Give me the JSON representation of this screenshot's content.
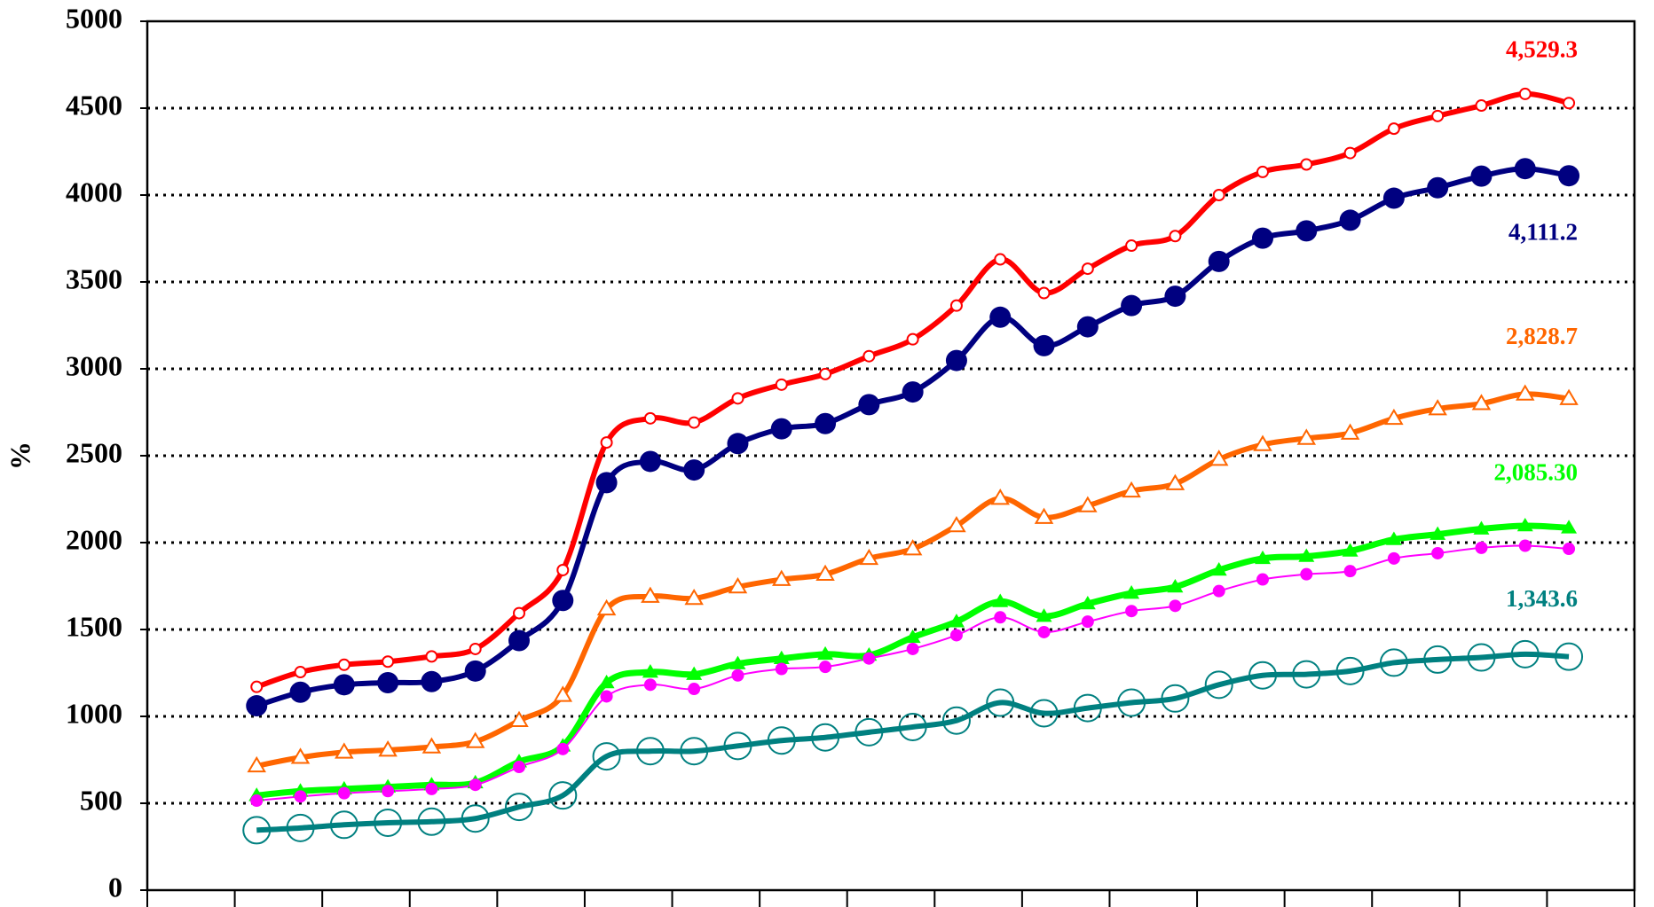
{
  "chart_data": {
    "type": "line",
    "y_label": "%",
    "categories": [
      null,
      null,
      null,
      null,
      null,
      null,
      null,
      null,
      null,
      null,
      null,
      null,
      null,
      null,
      null,
      null,
      null,
      null,
      null,
      null,
      null,
      null,
      null,
      null,
      null,
      null,
      null,
      null,
      null,
      null,
      null
    ],
    "ylim": [
      0,
      5000
    ],
    "yticks": [
      0,
      500,
      1000,
      1500,
      2000,
      2500,
      3000,
      3500,
      4000,
      4500,
      5000
    ],
    "grid": true,
    "series": [
      {
        "color": "#ff0000",
        "marker": "circle-open",
        "values": [
          1170,
          1255,
          1297,
          1315,
          1345,
          1388,
          1594,
          1842,
          2576,
          2715,
          2691,
          2830,
          2909,
          2970,
          3073,
          3170,
          3364,
          3630,
          3436,
          3576,
          3709,
          3764,
          4000,
          4133,
          4176,
          4242,
          4382,
          4455,
          4515,
          4582,
          4529.3
        ],
        "value_labels": [
          null,
          null,
          null,
          null,
          null,
          null,
          null,
          null,
          null,
          null,
          null,
          null,
          null,
          null,
          null,
          null,
          null,
          null,
          null,
          null,
          null,
          null,
          null,
          null,
          null,
          null,
          null,
          null,
          null,
          null,
          "4,529.3"
        ]
      },
      {
        "color": "#000080",
        "marker": "circle-filled-large",
        "values": [
          1061,
          1139,
          1182,
          1194,
          1200,
          1261,
          1436,
          1667,
          2345,
          2467,
          2418,
          2570,
          2655,
          2685,
          2794,
          2867,
          3048,
          3297,
          3133,
          3242,
          3364,
          3418,
          3618,
          3752,
          3794,
          3855,
          3982,
          4042,
          4109,
          4152,
          4111.2
        ],
        "value_labels": [
          null,
          null,
          null,
          null,
          null,
          null,
          null,
          null,
          null,
          null,
          null,
          null,
          null,
          null,
          null,
          null,
          null,
          null,
          null,
          null,
          null,
          null,
          null,
          null,
          null,
          null,
          null,
          null,
          null,
          null,
          "4,111.2"
        ]
      },
      {
        "color": "#ff6600",
        "marker": "triangle-open",
        "values": [
          715,
          764,
          794,
          806,
          824,
          855,
          976,
          1121,
          1618,
          1691,
          1679,
          1745,
          1788,
          1818,
          1909,
          1964,
          2097,
          2255,
          2145,
          2212,
          2297,
          2339,
          2479,
          2564,
          2600,
          2630,
          2715,
          2770,
          2800,
          2855,
          2828.7
        ],
        "value_labels": [
          null,
          null,
          null,
          null,
          null,
          null,
          null,
          null,
          null,
          null,
          null,
          null,
          null,
          null,
          null,
          null,
          null,
          null,
          null,
          null,
          null,
          null,
          null,
          null,
          null,
          null,
          null,
          null,
          null,
          null,
          "2,828.7"
        ]
      },
      {
        "color": "#00ff00",
        "marker": "triangle-filled",
        "values": [
          545,
          570,
          582,
          594,
          606,
          618,
          739,
          830,
          1194,
          1255,
          1242,
          1303,
          1333,
          1358,
          1352,
          1455,
          1545,
          1661,
          1576,
          1648,
          1709,
          1745,
          1842,
          1909,
          1921,
          1952,
          2018,
          2048,
          2079,
          2097,
          2085.3
        ],
        "value_labels": [
          null,
          null,
          null,
          null,
          null,
          null,
          null,
          null,
          null,
          null,
          null,
          null,
          null,
          null,
          null,
          null,
          null,
          null,
          null,
          null,
          null,
          null,
          null,
          null,
          null,
          null,
          null,
          null,
          null,
          null,
          "2,085.30"
        ]
      },
      {
        "color": "#ff00ff",
        "marker": "circle-filled",
        "values": [
          515,
          539,
          558,
          570,
          582,
          606,
          709,
          812,
          1115,
          1182,
          1158,
          1236,
          1273,
          1285,
          1333,
          1388,
          1467,
          1570,
          1485,
          1545,
          1606,
          1636,
          1721,
          1788,
          1818,
          1836,
          1909,
          1939,
          1970,
          1982,
          1964
        ]
      },
      {
        "color": "#008080",
        "marker": "circle-open-large",
        "values": [
          345,
          358,
          376,
          388,
          394,
          412,
          479,
          545,
          770,
          800,
          800,
          830,
          861,
          879,
          909,
          939,
          976,
          1079,
          1018,
          1048,
          1079,
          1103,
          1182,
          1236,
          1242,
          1261,
          1309,
          1327,
          1339,
          1358,
          1343.6
        ],
        "value_labels": [
          null,
          null,
          null,
          null,
          null,
          null,
          null,
          null,
          null,
          null,
          null,
          null,
          null,
          null,
          null,
          null,
          null,
          null,
          null,
          null,
          null,
          null,
          null,
          null,
          null,
          null,
          null,
          null,
          null,
          null,
          "1,343.6"
        ]
      }
    ]
  }
}
